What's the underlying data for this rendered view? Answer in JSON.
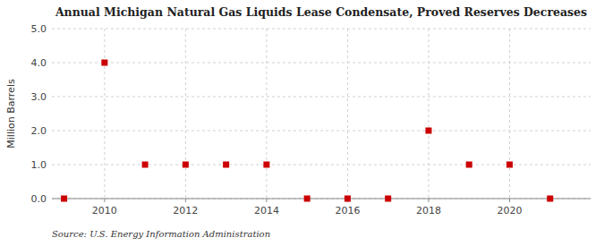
{
  "chart_data": {
    "type": "scatter",
    "title": "Annual Michigan Natural Gas Liquids Lease Condensate, Proved Reserves Decreases",
    "ylabel": "Million Barrels",
    "source": "Source: U.S. Energy Information Administration",
    "x": [
      2009,
      2010,
      2011,
      2012,
      2013,
      2014,
      2015,
      2016,
      2017,
      2018,
      2019,
      2020,
      2021
    ],
    "values": [
      0.0,
      4.0,
      1.0,
      1.0,
      1.0,
      1.0,
      0.0,
      0.0,
      0.0,
      2.0,
      1.0,
      1.0,
      0.0
    ],
    "color": "#cc0000",
    "marker": "square",
    "xlim": [
      2008.7,
      2022.0
    ],
    "ylim": [
      0.0,
      5.0
    ],
    "xticks": [
      2010,
      2012,
      2014,
      2016,
      2018,
      2020
    ],
    "yticks": [
      {
        "value": 0.0,
        "label": "0.0"
      },
      {
        "value": 1.0,
        "label": "1.0"
      },
      {
        "value": 2.0,
        "label": "2.0"
      },
      {
        "value": 3.0,
        "label": "3.0"
      },
      {
        "value": 4.0,
        "label": "4.0"
      },
      {
        "value": 5.0,
        "label": "5.0"
      }
    ],
    "grid": true
  }
}
